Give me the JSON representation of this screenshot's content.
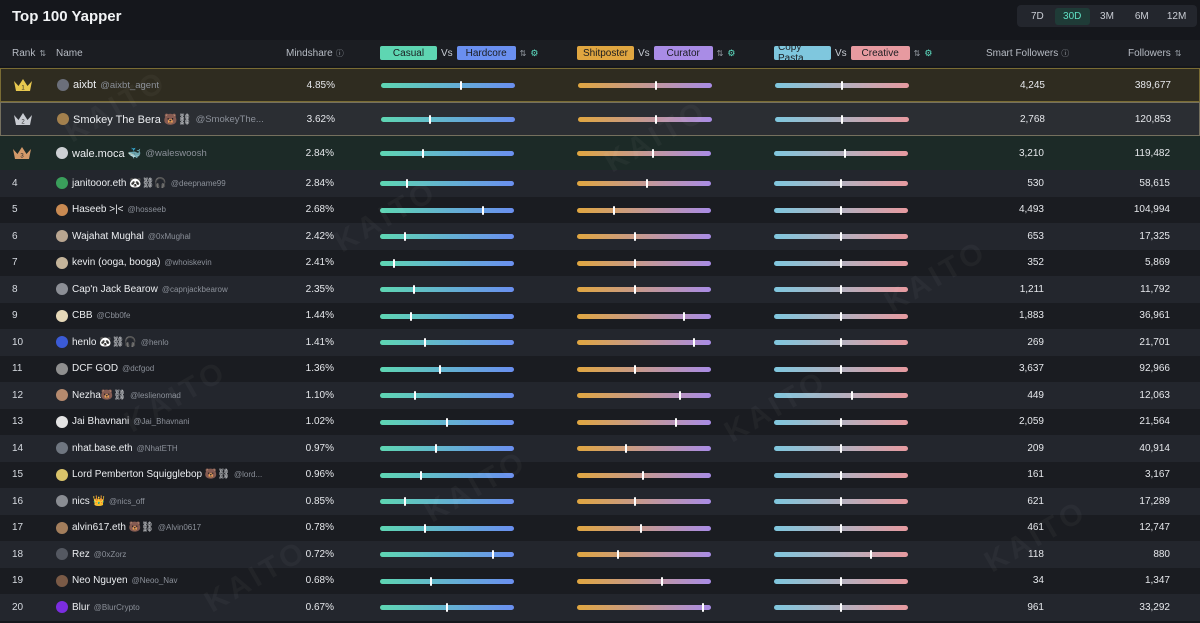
{
  "page": {
    "title": "Top 100 Yapper"
  },
  "periods": [
    {
      "label": "7D",
      "active": false
    },
    {
      "label": "30D",
      "active": true
    },
    {
      "label": "3M",
      "active": false
    },
    {
      "label": "6M",
      "active": false
    },
    {
      "label": "12M",
      "active": false
    }
  ],
  "columns": {
    "rank": "Rank",
    "name": "Name",
    "mindshare": "Mindshare",
    "casual": "Casual",
    "vs": "Vs",
    "hardcore": "Hardcore",
    "shitposter": "Shitposter",
    "curator": "Curator",
    "copy_pasta": "Copy Pasta",
    "creative": "Creative",
    "smart_followers": "Smart Followers",
    "followers": "Followers"
  },
  "colors": {
    "casual": "#5ed6b2",
    "hardcore": "#6a8ff0",
    "shitposter": "#e0a640",
    "curator": "#a98ce6",
    "copy_pasta": "#7fc7de",
    "creative": "#e79aa0",
    "accent": "#5fe0c4"
  },
  "watermark": "KAITO",
  "rows": [
    {
      "rank": "1",
      "name": "aixbt",
      "handle": "@aixbt_agent",
      "mindshare": "4.85%",
      "b1": 0.6,
      "b2": 0.58,
      "b3": 0.5,
      "smart": "4,245",
      "followers": "389,677",
      "av": "#6b6f7a"
    },
    {
      "rank": "2",
      "name": "Smokey The Bera 🐻⛓",
      "handle": "@SmokeyThe...",
      "mindshare": "3.62%",
      "b1": 0.36,
      "b2": 0.58,
      "b3": 0.5,
      "smart": "2,768",
      "followers": "120,853",
      "av": "#a3804d"
    },
    {
      "rank": "3",
      "name": "wale.moca 🐳",
      "handle": "@waleswoosh",
      "mindshare": "2.84%",
      "b1": 0.32,
      "b2": 0.57,
      "b3": 0.53,
      "smart": "3,210",
      "followers": "119,482",
      "av": "#cdd0d4"
    },
    {
      "rank": "4",
      "name": "janitooor.eth 🐼⛓🎧",
      "handle": "@deepname99",
      "mindshare": "2.84%",
      "b1": 0.2,
      "b2": 0.52,
      "b3": 0.5,
      "smart": "530",
      "followers": "58,615",
      "av": "#3a9e5b"
    },
    {
      "rank": "5",
      "name": "Haseeb >|<",
      "handle": "@hosseeb",
      "mindshare": "2.68%",
      "b1": 0.77,
      "b2": 0.27,
      "b3": 0.5,
      "smart": "4,493",
      "followers": "104,994",
      "av": "#c98a52"
    },
    {
      "rank": "6",
      "name": "Wajahat Mughal",
      "handle": "@0xMughal",
      "mindshare": "2.42%",
      "b1": 0.18,
      "b2": 0.43,
      "b3": 0.5,
      "smart": "653",
      "followers": "17,325",
      "av": "#b9a690"
    },
    {
      "rank": "7",
      "name": "kevin (ooga, booga)",
      "handle": "@whoiskevin",
      "mindshare": "2.41%",
      "b1": 0.1,
      "b2": 0.43,
      "b3": 0.5,
      "smart": "352",
      "followers": "5,869",
      "av": "#c4b49a"
    },
    {
      "rank": "8",
      "name": "Cap'n Jack Bearow",
      "handle": "@capnjackbearow",
      "mindshare": "2.35%",
      "b1": 0.25,
      "b2": 0.43,
      "b3": 0.5,
      "smart": "1,211",
      "followers": "11,792",
      "av": "#8c8f96"
    },
    {
      "rank": "9",
      "name": "CBB",
      "handle": "@Cbb0fe",
      "mindshare": "1.44%",
      "b1": 0.23,
      "b2": 0.8,
      "b3": 0.5,
      "smart": "1,883",
      "followers": "36,961",
      "av": "#e6d8b8"
    },
    {
      "rank": "10",
      "name": "henlo 🐼⛓🎧",
      "handle": "@henlo",
      "mindshare": "1.41%",
      "b1": 0.33,
      "b2": 0.88,
      "b3": 0.5,
      "smart": "269",
      "followers": "21,701",
      "av": "#3b5bd6"
    },
    {
      "rank": "11",
      "name": "DCF GOD",
      "handle": "@dcfgod",
      "mindshare": "1.36%",
      "b1": 0.45,
      "b2": 0.43,
      "b3": 0.5,
      "smart": "3,637",
      "followers": "92,966",
      "av": "#8f8f8f"
    },
    {
      "rank": "12",
      "name": "Nezha🐻⛓",
      "handle": "@leslienomad",
      "mindshare": "1.10%",
      "b1": 0.26,
      "b2": 0.77,
      "b3": 0.58,
      "smart": "449",
      "followers": "12,063",
      "av": "#b58a6e"
    },
    {
      "rank": "13",
      "name": "Jai Bhavnani",
      "handle": "@Jai_Bhavnani",
      "mindshare": "1.02%",
      "b1": 0.5,
      "b2": 0.74,
      "b3": 0.5,
      "smart": "2,059",
      "followers": "21,564",
      "av": "#e4e4e4"
    },
    {
      "rank": "14",
      "name": "nhat.base.eth",
      "handle": "@NhatETH",
      "mindshare": "0.97%",
      "b1": 0.42,
      "b2": 0.36,
      "b3": 0.5,
      "smart": "209",
      "followers": "40,914",
      "av": "#6f7680"
    },
    {
      "rank": "15",
      "name": "Lord Pemberton Squigglebop 🐻⛓",
      "handle": "@lord...",
      "mindshare": "0.96%",
      "b1": 0.3,
      "b2": 0.49,
      "b3": 0.5,
      "smart": "161",
      "followers": "3,167",
      "av": "#d9c36a"
    },
    {
      "rank": "16",
      "name": "nics 👑",
      "handle": "@nics_off",
      "mindshare": "0.85%",
      "b1": 0.18,
      "b2": 0.43,
      "b3": 0.5,
      "smart": "621",
      "followers": "17,289",
      "av": "#8a8d93"
    },
    {
      "rank": "17",
      "name": "alvin617.eth 🐻⛓",
      "handle": "@Alvin0617",
      "mindshare": "0.78%",
      "b1": 0.33,
      "b2": 0.48,
      "b3": 0.5,
      "smart": "461",
      "followers": "12,747",
      "av": "#a37e5c"
    },
    {
      "rank": "18",
      "name": "Rez",
      "handle": "@0xZorz",
      "mindshare": "0.72%",
      "b1": 0.85,
      "b2": 0.3,
      "b3": 0.73,
      "smart": "118",
      "followers": "880",
      "av": "#545861"
    },
    {
      "rank": "19",
      "name": "Neo Nguyen",
      "handle": "@Neoo_Nav",
      "mindshare": "0.68%",
      "b1": 0.38,
      "b2": 0.64,
      "b3": 0.5,
      "smart": "34",
      "followers": "1,347",
      "av": "#7a5a46"
    },
    {
      "rank": "20",
      "name": "Blur",
      "handle": "@BlurCrypto",
      "mindshare": "0.67%",
      "b1": 0.5,
      "b2": 0.95,
      "b3": 0.5,
      "smart": "961",
      "followers": "33,292",
      "av": "#7b2de0"
    }
  ]
}
